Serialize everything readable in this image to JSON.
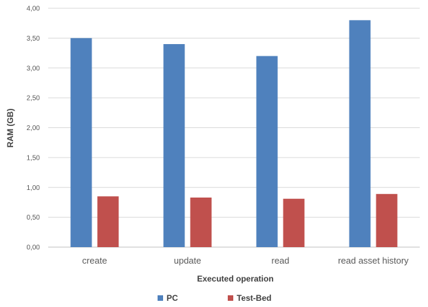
{
  "chart_data": {
    "type": "bar",
    "title": "",
    "xlabel": "Executed operation",
    "ylabel": "RAM (GB)",
    "ylim": [
      0,
      4
    ],
    "yticks": [
      "0,00",
      "0,50",
      "1,00",
      "1,50",
      "2,00",
      "2,50",
      "3,00",
      "3,50",
      "4,00"
    ],
    "categories": [
      "create",
      "update",
      "read",
      "read asset history"
    ],
    "series": [
      {
        "name": "PC",
        "color": "#4f81bd",
        "values": [
          3.5,
          3.4,
          3.2,
          3.8
        ]
      },
      {
        "name": "Test-Bed",
        "color": "#c0504d",
        "values": [
          0.85,
          0.83,
          0.81,
          0.89
        ]
      }
    ],
    "grid": true,
    "legend": "bottom"
  }
}
